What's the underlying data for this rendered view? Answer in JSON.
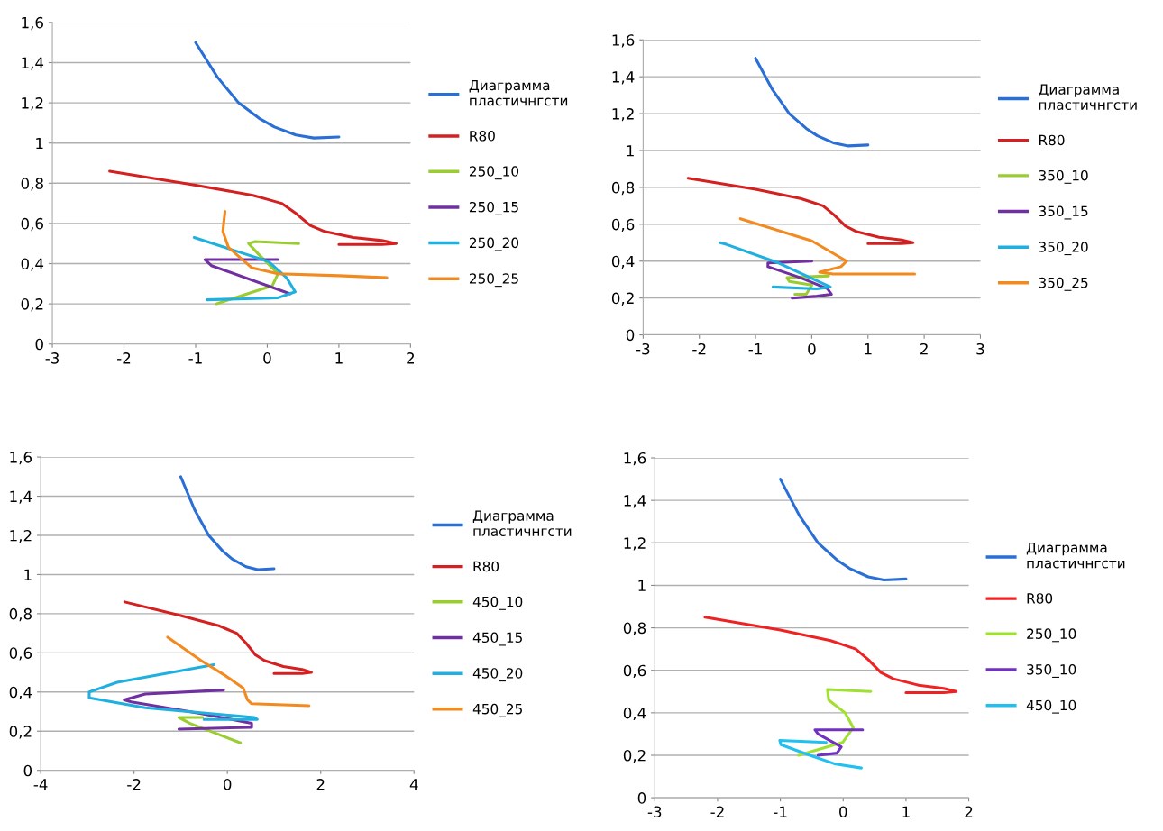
{
  "chart_data": [
    {
      "type": "line",
      "xlim": [
        -3,
        2
      ],
      "xticks": [
        -3,
        -2,
        -1,
        0,
        1,
        2
      ],
      "ylim": [
        0,
        1.6
      ],
      "yticks": [
        0,
        {
          "value": 0.2,
          "label": "0,2"
        },
        {
          "value": 0.4,
          "label": "0,4"
        },
        {
          "value": 0.6,
          "label": "0,6"
        },
        {
          "value": 0.8,
          "label": "0,8"
        },
        1,
        {
          "value": 1.2,
          "label": "1,2"
        },
        {
          "value": 1.4,
          "label": "1,4"
        },
        {
          "value": 1.6,
          "label": "1,6"
        }
      ],
      "grid": "y",
      "legend": "right",
      "marker": "none",
      "line_style": "solid",
      "series": [
        {
          "name": "Диаграмма\nпластичнгсти",
          "color": "#2a6fd6",
          "x": [
            -1,
            -0.7,
            -0.4,
            -0.1,
            0.1,
            0.4,
            0.65,
            1
          ],
          "values": [
            1.5,
            1.33,
            1.2,
            1.12,
            1.08,
            1.04,
            1.025,
            1.03
          ]
        },
        {
          "name": "R80",
          "color": "#d42020",
          "x": [
            -2.2,
            -1,
            -0.2,
            0,
            0.2,
            0.4,
            0.6,
            0.8,
            1.2,
            1.6,
            1.8,
            1.6,
            1
          ],
          "values": [
            0.86,
            0.79,
            0.74,
            0.72,
            0.7,
            0.65,
            0.59,
            0.56,
            0.53,
            0.515,
            0.5,
            0.495,
            0.495
          ]
        },
        {
          "name": "250_10",
          "color": "#9acd32",
          "x": [
            -0.71,
            0.07,
            0.15,
            -0.13,
            -0.26,
            -0.17,
            0.44
          ],
          "values": [
            0.2,
            0.29,
            0.35,
            0.45,
            0.5,
            0.51,
            0.5
          ]
        },
        {
          "name": "250_15",
          "color": "#7030a0",
          "x": [
            0.15,
            -0.87,
            -0.78,
            0.32
          ],
          "values": [
            0.42,
            0.42,
            0.39,
            0.25
          ]
        },
        {
          "name": "250_20",
          "color": "#1fb0e0",
          "x": [
            -0.84,
            0.15,
            0.39,
            0.27,
            0.02,
            -1.02
          ],
          "values": [
            0.22,
            0.23,
            0.26,
            0.33,
            0.41,
            0.53
          ]
        },
        {
          "name": "250_25",
          "color": "#f28a20",
          "x": [
            -0.59,
            -0.62,
            -0.54,
            -0.22,
            0.15,
            1.0,
            1.67
          ],
          "values": [
            0.66,
            0.56,
            0.48,
            0.38,
            0.35,
            0.34,
            0.33
          ]
        }
      ]
    },
    {
      "type": "line",
      "xlim": [
        -3,
        3
      ],
      "xticks": [
        -3,
        -2,
        -1,
        0,
        1,
        2,
        3
      ],
      "ylim": [
        0,
        1.6
      ],
      "yticks": [
        0,
        {
          "value": 0.2,
          "label": "0,2"
        },
        {
          "value": 0.4,
          "label": "0,4"
        },
        {
          "value": 0.6,
          "label": "0,6"
        },
        {
          "value": 0.8,
          "label": "0,8"
        },
        1,
        {
          "value": 1.2,
          "label": "1,2"
        },
        {
          "value": 1.4,
          "label": "1,4"
        },
        {
          "value": 1.6,
          "label": "1,6"
        }
      ],
      "grid": "y",
      "legend": "right",
      "marker": "none",
      "line_style": "solid",
      "series": [
        {
          "name": "Диаграмма\nпластичнгсти",
          "color": "#2a6fd6",
          "x": [
            -1,
            -0.7,
            -0.4,
            -0.1,
            0.1,
            0.4,
            0.65,
            1
          ],
          "values": [
            1.5,
            1.33,
            1.2,
            1.12,
            1.08,
            1.04,
            1.025,
            1.03
          ]
        },
        {
          "name": "R80",
          "color": "#d42020",
          "x": [
            -2.2,
            -1,
            -0.2,
            0,
            0.2,
            0.4,
            0.6,
            0.8,
            1.2,
            1.6,
            1.8,
            1.6,
            1
          ],
          "values": [
            0.85,
            0.79,
            0.74,
            0.72,
            0.7,
            0.65,
            0.59,
            0.56,
            0.53,
            0.515,
            0.5,
            0.495,
            0.495
          ]
        },
        {
          "name": "350_10",
          "color": "#9acd32",
          "x": [
            0.3,
            -0.44,
            -0.4,
            0,
            -0.1,
            -0.3
          ],
          "values": [
            0.32,
            0.31,
            0.29,
            0.27,
            0.22,
            0.22
          ]
        },
        {
          "name": "350_15",
          "color": "#7030a0",
          "x": [
            0,
            -0.78,
            -0.78,
            -0.2,
            0.28,
            0.35,
            0.09,
            -0.35
          ],
          "values": [
            0.4,
            0.39,
            0.37,
            0.31,
            0.25,
            0.22,
            0.21,
            0.2
          ]
        },
        {
          "name": "350_20",
          "color": "#1fb0e0",
          "x": [
            -1.63,
            -1.51,
            -0.59,
            0.33,
            0.09,
            -0.69
          ],
          "values": [
            0.5,
            0.49,
            0.39,
            0.26,
            0.25,
            0.26
          ]
        },
        {
          "name": "350_25",
          "color": "#f28a20",
          "x": [
            -1.27,
            0,
            0.62,
            0.52,
            0.14,
            0.38,
            1.83
          ],
          "values": [
            0.63,
            0.51,
            0.4,
            0.37,
            0.34,
            0.33,
            0.33
          ]
        }
      ]
    },
    {
      "type": "line",
      "xlim": [
        -4,
        4
      ],
      "xticks": [
        -4,
        -2,
        0,
        2,
        4
      ],
      "ylim": [
        0,
        1.6
      ],
      "yticks": [
        0,
        {
          "value": 0.2,
          "label": "0,2"
        },
        {
          "value": 0.4,
          "label": "0,4"
        },
        {
          "value": 0.6,
          "label": "0,6"
        },
        {
          "value": 0.8,
          "label": "0,8"
        },
        1,
        {
          "value": 1.2,
          "label": "1,2"
        },
        {
          "value": 1.4,
          "label": "1,4"
        },
        {
          "value": 1.6,
          "label": "1,6"
        }
      ],
      "grid": "y",
      "legend": "right",
      "marker": "none",
      "line_style": "solid",
      "series": [
        {
          "name": "Диаграмма\nпластичнгсти",
          "color": "#2a6fd6",
          "x": [
            -1,
            -0.7,
            -0.4,
            -0.1,
            0.1,
            0.4,
            0.65,
            1
          ],
          "values": [
            1.5,
            1.33,
            1.2,
            1.12,
            1.08,
            1.04,
            1.025,
            1.03
          ]
        },
        {
          "name": "R80",
          "color": "#d42020",
          "x": [
            -2.2,
            -1,
            -0.2,
            0,
            0.2,
            0.4,
            0.6,
            0.8,
            1.2,
            1.6,
            1.8,
            1.6,
            1
          ],
          "values": [
            0.86,
            0.79,
            0.74,
            0.72,
            0.7,
            0.65,
            0.59,
            0.56,
            0.53,
            0.515,
            0.5,
            0.495,
            0.495
          ]
        },
        {
          "name": "450_10",
          "color": "#9acd32",
          "x": [
            -0.53,
            -1.04,
            -0.8,
            -0.26,
            0.28
          ],
          "values": [
            0.27,
            0.27,
            0.24,
            0.19,
            0.14
          ]
        },
        {
          "name": "450_15",
          "color": "#7030a0",
          "x": [
            -0.08,
            -1.76,
            -2.21,
            -2.06,
            -0.56,
            0.52,
            0.52,
            -1.04
          ],
          "values": [
            0.41,
            0.39,
            0.36,
            0.35,
            0.29,
            0.24,
            0.22,
            0.21
          ]
        },
        {
          "name": "450_20",
          "color": "#1fb0e0",
          "x": [
            -0.29,
            -2.36,
            -2.96,
            -2.96,
            -1.76,
            0.58,
            0.64,
            -0.5
          ],
          "values": [
            0.54,
            0.45,
            0.4,
            0.37,
            0.32,
            0.27,
            0.26,
            0.26
          ]
        },
        {
          "name": "450_25",
          "color": "#f28a20",
          "x": [
            -1.28,
            -0.56,
            -0.02,
            0.34,
            0.43,
            0.52,
            1.75
          ],
          "values": [
            0.68,
            0.56,
            0.48,
            0.42,
            0.36,
            0.34,
            0.33
          ]
        }
      ]
    },
    {
      "type": "line",
      "xlim": [
        -3,
        2
      ],
      "xticks": [
        -3,
        -2,
        -1,
        0,
        1,
        2
      ],
      "ylim": [
        0,
        1.6
      ],
      "yticks": [
        0,
        {
          "value": 0.2,
          "label": "0,2"
        },
        {
          "value": 0.4,
          "label": "0,4"
        },
        {
          "value": 0.6,
          "label": "0,6"
        },
        {
          "value": 0.8,
          "label": "0,8"
        },
        1,
        {
          "value": 1.2,
          "label": "1,2"
        },
        {
          "value": 1.4,
          "label": "1,4"
        },
        {
          "value": 1.6,
          "label": "1,6"
        }
      ],
      "grid": "y",
      "legend": "right",
      "marker": "none",
      "line_style": "solid",
      "series": [
        {
          "name": "Диаграмма\nпластичнгсти",
          "color": "#2a6fd6",
          "x": [
            -1,
            -0.7,
            -0.4,
            -0.1,
            0.1,
            0.4,
            0.65,
            1
          ],
          "values": [
            1.5,
            1.33,
            1.2,
            1.12,
            1.08,
            1.04,
            1.025,
            1.03
          ]
        },
        {
          "name": "R80",
          "color": "#ee2222",
          "x": [
            -2.2,
            -1,
            -0.2,
            0,
            0.2,
            0.4,
            0.6,
            0.8,
            1.2,
            1.6,
            1.8,
            1.6,
            1
          ],
          "values": [
            0.85,
            0.79,
            0.74,
            0.72,
            0.7,
            0.65,
            0.59,
            0.56,
            0.53,
            0.515,
            0.5,
            0.495,
            0.495
          ]
        },
        {
          "name": "250_10",
          "color": "#a0e030",
          "x": [
            0.44,
            -0.25,
            -0.23,
            0.03,
            0.16,
            -0.01,
            -0.71
          ],
          "values": [
            0.5,
            0.51,
            0.46,
            0.4,
            0.33,
            0.26,
            0.2
          ]
        },
        {
          "name": "350_10",
          "color": "#7030c0",
          "x": [
            0.31,
            -0.45,
            -0.4,
            -0.03,
            -0.1,
            -0.4
          ],
          "values": [
            0.32,
            0.32,
            0.3,
            0.24,
            0.21,
            0.2
          ]
        },
        {
          "name": "450_10",
          "color": "#20c0f0",
          "x": [
            -0.27,
            -1.01,
            -0.99,
            -0.53,
            -0.14,
            0.29
          ],
          "values": [
            0.26,
            0.27,
            0.25,
            0.2,
            0.16,
            0.14
          ]
        }
      ]
    }
  ]
}
